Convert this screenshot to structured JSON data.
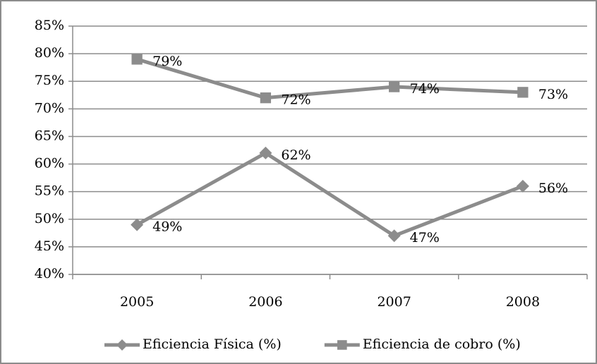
{
  "chart_data": {
    "type": "line",
    "categories": [
      "2005",
      "2006",
      "2007",
      "2008"
    ],
    "series": [
      {
        "name": "Eficiencia Física (%)",
        "color": "#8c8c8c",
        "marker": "diamond",
        "values": [
          49,
          62,
          47,
          56
        ],
        "value_labels": [
          "49%",
          "62%",
          "47%",
          "56%"
        ]
      },
      {
        "name": "Eficiencia de cobro (%)",
        "color": "#8c8c8c",
        "marker": "square",
        "values": [
          79,
          72,
          74,
          73
        ],
        "value_labels": [
          "79%",
          "72%",
          "74%",
          "73%"
        ]
      }
    ],
    "ylim": [
      40,
      85
    ],
    "yticks": [
      {
        "value": 40,
        "label": "40%"
      },
      {
        "value": 45,
        "label": "45%"
      },
      {
        "value": 50,
        "label": "50%"
      },
      {
        "value": 55,
        "label": "55%"
      },
      {
        "value": 60,
        "label": "60%"
      },
      {
        "value": 65,
        "label": "65%"
      },
      {
        "value": 70,
        "label": "70%"
      },
      {
        "value": 75,
        "label": "75%"
      },
      {
        "value": 80,
        "label": "80%"
      },
      {
        "value": 85,
        "label": "85%"
      }
    ],
    "grid": true,
    "legend": "bottom"
  }
}
